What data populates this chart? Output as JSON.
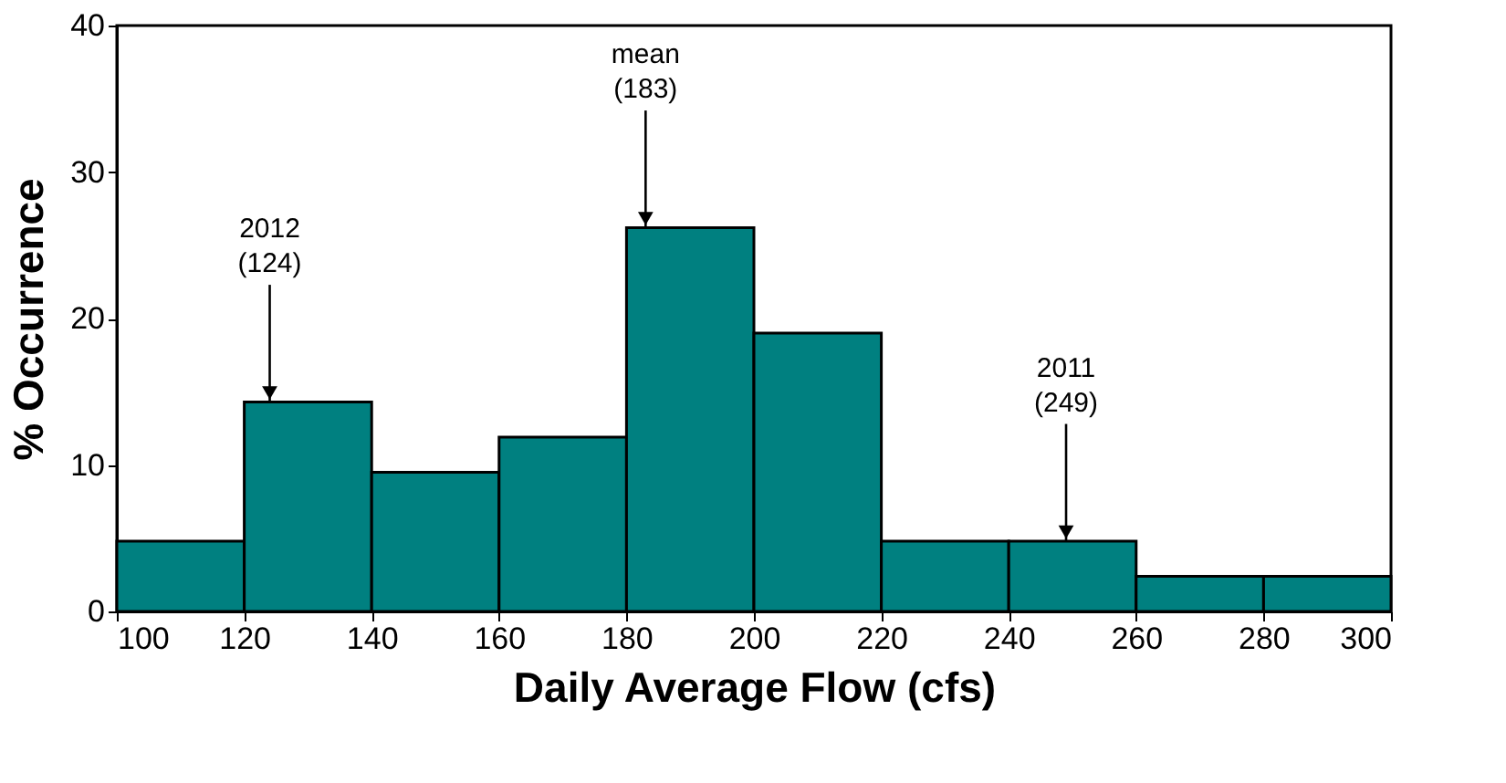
{
  "chart_data": {
    "type": "histogram",
    "xlabel": "Daily Average Flow (cfs)",
    "ylabel": "% Occurrence",
    "bins": [
      100,
      120,
      140,
      160,
      180,
      200,
      220,
      240,
      260,
      280,
      300
    ],
    "values": [
      4.8,
      14.3,
      9.5,
      11.9,
      26.2,
      19.0,
      4.8,
      4.8,
      2.4,
      2.4
    ],
    "color": "#008080",
    "xlim": [
      100,
      300
    ],
    "xticks": [
      100,
      120,
      140,
      160,
      180,
      200,
      220,
      240,
      260,
      280,
      300
    ],
    "ylim": [
      0,
      40
    ],
    "yticks": [
      0,
      10,
      20,
      30,
      40
    ],
    "grid": false,
    "annotations": [
      {
        "text": "2012\n(124)",
        "x": 124,
        "y": 14.3
      },
      {
        "text": "mean\n(183)",
        "x": 183,
        "y": 26.2
      },
      {
        "text": "2011\n(249)",
        "x": 249,
        "y": 4.8
      }
    ]
  }
}
